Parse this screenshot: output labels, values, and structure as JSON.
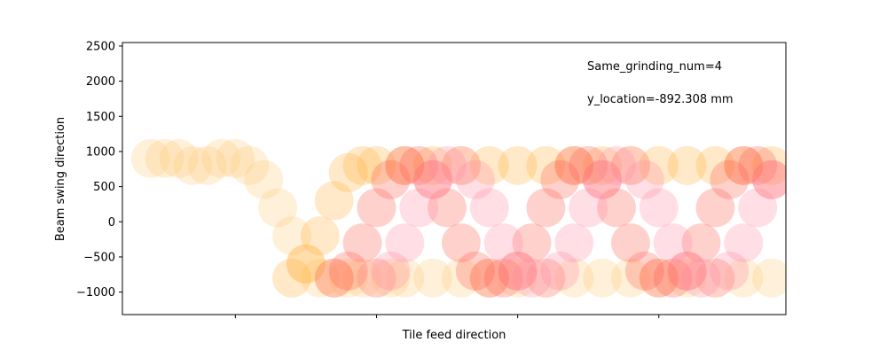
{
  "chart_data": {
    "type": "scatter",
    "xlabel": "Tile feed direction",
    "ylabel": "Beam swing direction",
    "ylim": [
      -1320,
      2550
    ],
    "xlim": [
      0,
      23.5
    ],
    "y_ticks": [
      2500,
      2000,
      1500,
      1000,
      500,
      0,
      -500,
      -1000
    ],
    "x_ticks_labeled": false,
    "grid": false,
    "annotations": [
      "Same_grinding_num=4",
      "y_location=-892.308 mm"
    ],
    "marker": "filled circle, low alpha, heavy overlap",
    "colors": {
      "light": "#ffd08a",
      "mid": "#ffb347",
      "dense": "#ff4d4d",
      "pink": "#ff8fa8"
    },
    "series": [
      {
        "color": "#ffc878",
        "points": [
          [
            1,
            900
          ],
          [
            1.5,
            900
          ],
          [
            2,
            900
          ],
          [
            2.5,
            800
          ],
          [
            3,
            800
          ],
          [
            3.5,
            900
          ],
          [
            4,
            900
          ],
          [
            4.5,
            800
          ],
          [
            5,
            600
          ],
          [
            5.5,
            200
          ],
          [
            6,
            -200
          ],
          [
            6.5,
            -600
          ],
          [
            7,
            -800
          ],
          [
            7.5,
            -800
          ],
          [
            8,
            -800
          ],
          [
            8.5,
            -800
          ],
          [
            9,
            -800
          ],
          [
            9.5,
            -800
          ],
          [
            10,
            -800
          ],
          [
            11,
            -800
          ],
          [
            12,
            -800
          ],
          [
            13,
            -800
          ],
          [
            14,
            -800
          ],
          [
            15,
            -800
          ],
          [
            16,
            -800
          ],
          [
            17,
            -800
          ],
          [
            18,
            -800
          ],
          [
            19,
            -800
          ],
          [
            20,
            -800
          ],
          [
            21,
            -800
          ],
          [
            22,
            -800
          ],
          [
            23,
            -800
          ]
        ]
      },
      {
        "color": "#ffb03a",
        "points": [
          [
            6,
            -800
          ],
          [
            6.5,
            -600
          ],
          [
            7,
            -200
          ],
          [
            7.5,
            300
          ],
          [
            8,
            700
          ],
          [
            8.5,
            800
          ],
          [
            9,
            800
          ],
          [
            10,
            800
          ],
          [
            11,
            800
          ],
          [
            12,
            800
          ],
          [
            13,
            800
          ],
          [
            14,
            800
          ],
          [
            15,
            800
          ],
          [
            16,
            800
          ],
          [
            17,
            800
          ],
          [
            18,
            800
          ],
          [
            19,
            800
          ],
          [
            20,
            800
          ],
          [
            21,
            800
          ],
          [
            22,
            800
          ],
          [
            23,
            800
          ]
        ]
      },
      {
        "color": "#ff5a4a",
        "points": [
          [
            7.5,
            -800
          ],
          [
            8,
            -700
          ],
          [
            8.5,
            -300
          ],
          [
            9,
            200
          ],
          [
            9.5,
            600
          ],
          [
            10,
            800
          ],
          [
            10.5,
            800
          ],
          [
            11,
            600
          ],
          [
            11.5,
            200
          ],
          [
            12,
            -300
          ],
          [
            12.5,
            -700
          ],
          [
            13,
            -800
          ],
          [
            13.5,
            -800
          ],
          [
            14,
            -700
          ],
          [
            14.5,
            -300
          ],
          [
            15,
            200
          ],
          [
            15.5,
            600
          ],
          [
            16,
            800
          ],
          [
            16.5,
            800
          ],
          [
            17,
            600
          ],
          [
            17.5,
            200
          ],
          [
            18,
            -300
          ],
          [
            18.5,
            -700
          ],
          [
            19,
            -800
          ],
          [
            19.5,
            -800
          ],
          [
            20,
            -700
          ],
          [
            20.5,
            -300
          ],
          [
            21,
            200
          ],
          [
            21.5,
            600
          ],
          [
            22,
            800
          ],
          [
            22.5,
            800
          ],
          [
            23,
            600
          ]
        ]
      },
      {
        "color": "#ff8aa0",
        "points": [
          [
            9,
            -800
          ],
          [
            9.5,
            -700
          ],
          [
            10,
            -300
          ],
          [
            10.5,
            200
          ],
          [
            11,
            600
          ],
          [
            11.5,
            800
          ],
          [
            12,
            800
          ],
          [
            12.5,
            600
          ],
          [
            13,
            200
          ],
          [
            13.5,
            -300
          ],
          [
            14,
            -700
          ],
          [
            14.5,
            -800
          ],
          [
            15,
            -800
          ],
          [
            15.5,
            -700
          ],
          [
            16,
            -300
          ],
          [
            16.5,
            200
          ],
          [
            17,
            600
          ],
          [
            17.5,
            800
          ],
          [
            18,
            800
          ],
          [
            18.5,
            600
          ],
          [
            19,
            200
          ],
          [
            19.5,
            -300
          ],
          [
            20,
            -700
          ],
          [
            20.5,
            -800
          ],
          [
            21,
            -800
          ],
          [
            21.5,
            -700
          ],
          [
            22,
            -300
          ],
          [
            22.5,
            200
          ],
          [
            23,
            600
          ]
        ]
      }
    ]
  }
}
